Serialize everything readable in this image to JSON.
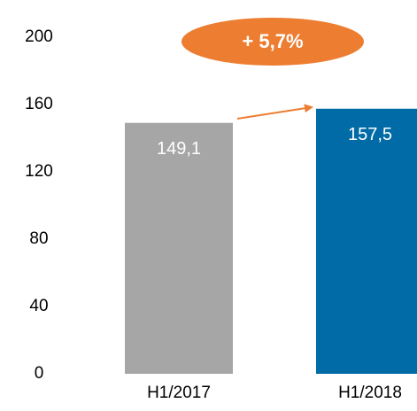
{
  "chart_data": {
    "type": "bar",
    "categories": [
      "H1/2017",
      "H1/2018"
    ],
    "values": [
      149.1,
      157.5
    ],
    "value_labels": [
      "149,1",
      "157,5"
    ],
    "colors": [
      "#a6a6a6",
      "#006ba6"
    ],
    "ylim": [
      0,
      200
    ],
    "yticks": [
      0,
      40,
      80,
      120,
      160,
      200
    ],
    "grid": false,
    "annotation": "+ 5,7%"
  }
}
